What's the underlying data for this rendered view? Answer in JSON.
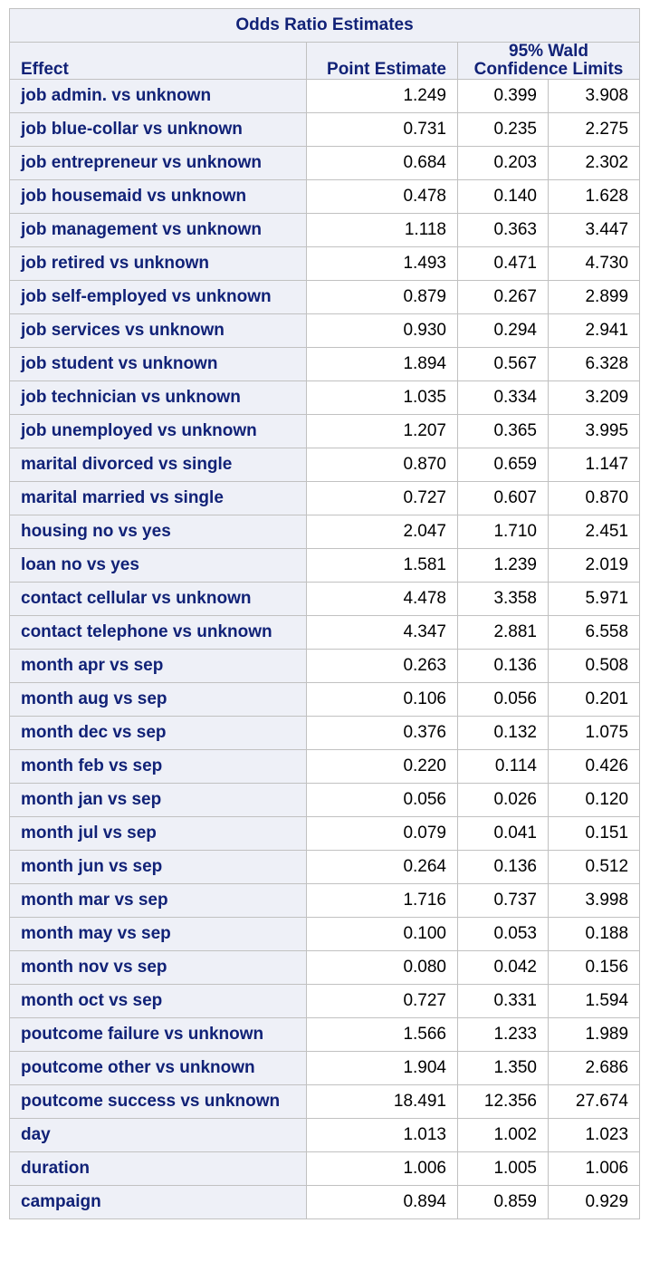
{
  "title": "Odds Ratio Estimates",
  "headers": {
    "effect": "Effect",
    "point": "Point Estimate",
    "ci_line1": "95% Wald",
    "ci_line2": "Confidence Limits"
  },
  "rows": [
    {
      "effect": "job admin. vs unknown",
      "point": "1.249",
      "lower": "0.399",
      "upper": "3.908"
    },
    {
      "effect": "job blue-collar vs unknown",
      "point": "0.731",
      "lower": "0.235",
      "upper": "2.275"
    },
    {
      "effect": "job entrepreneur vs unknown",
      "point": "0.684",
      "lower": "0.203",
      "upper": "2.302"
    },
    {
      "effect": "job housemaid vs unknown",
      "point": "0.478",
      "lower": "0.140",
      "upper": "1.628"
    },
    {
      "effect": "job management vs unknown",
      "point": "1.118",
      "lower": "0.363",
      "upper": "3.447"
    },
    {
      "effect": "job retired vs unknown",
      "point": "1.493",
      "lower": "0.471",
      "upper": "4.730"
    },
    {
      "effect": "job self-employed vs unknown",
      "point": "0.879",
      "lower": "0.267",
      "upper": "2.899"
    },
    {
      "effect": "job services vs unknown",
      "point": "0.930",
      "lower": "0.294",
      "upper": "2.941"
    },
    {
      "effect": "job student vs unknown",
      "point": "1.894",
      "lower": "0.567",
      "upper": "6.328"
    },
    {
      "effect": "job technician vs unknown",
      "point": "1.035",
      "lower": "0.334",
      "upper": "3.209"
    },
    {
      "effect": "job unemployed vs unknown",
      "point": "1.207",
      "lower": "0.365",
      "upper": "3.995"
    },
    {
      "effect": "marital divorced vs single",
      "point": "0.870",
      "lower": "0.659",
      "upper": "1.147"
    },
    {
      "effect": "marital married vs single",
      "point": "0.727",
      "lower": "0.607",
      "upper": "0.870"
    },
    {
      "effect": "housing no vs yes",
      "point": "2.047",
      "lower": "1.710",
      "upper": "2.451"
    },
    {
      "effect": "loan no vs yes",
      "point": "1.581",
      "lower": "1.239",
      "upper": "2.019"
    },
    {
      "effect": "contact cellular vs unknown",
      "point": "4.478",
      "lower": "3.358",
      "upper": "5.971"
    },
    {
      "effect": "contact telephone vs unknown",
      "point": "4.347",
      "lower": "2.881",
      "upper": "6.558"
    },
    {
      "effect": "month apr vs sep",
      "point": "0.263",
      "lower": "0.136",
      "upper": "0.508"
    },
    {
      "effect": "month aug vs sep",
      "point": "0.106",
      "lower": "0.056",
      "upper": "0.201"
    },
    {
      "effect": "month dec vs sep",
      "point": "0.376",
      "lower": "0.132",
      "upper": "1.075"
    },
    {
      "effect": "month feb vs sep",
      "point": "0.220",
      "lower": "0.114",
      "upper": "0.426"
    },
    {
      "effect": "month jan vs sep",
      "point": "0.056",
      "lower": "0.026",
      "upper": "0.120"
    },
    {
      "effect": "month jul vs sep",
      "point": "0.079",
      "lower": "0.041",
      "upper": "0.151"
    },
    {
      "effect": "month jun vs sep",
      "point": "0.264",
      "lower": "0.136",
      "upper": "0.512"
    },
    {
      "effect": "month mar vs sep",
      "point": "1.716",
      "lower": "0.737",
      "upper": "3.998"
    },
    {
      "effect": "month may vs sep",
      "point": "0.100",
      "lower": "0.053",
      "upper": "0.188"
    },
    {
      "effect": "month nov vs sep",
      "point": "0.080",
      "lower": "0.042",
      "upper": "0.156"
    },
    {
      "effect": "month oct vs sep",
      "point": "0.727",
      "lower": "0.331",
      "upper": "1.594"
    },
    {
      "effect": "poutcome failure vs unknown",
      "point": "1.566",
      "lower": "1.233",
      "upper": "1.989"
    },
    {
      "effect": "poutcome other vs unknown",
      "point": "1.904",
      "lower": "1.350",
      "upper": "2.686"
    },
    {
      "effect": "poutcome success vs unknown",
      "point": "18.491",
      "lower": "12.356",
      "upper": "27.674"
    },
    {
      "effect": "day",
      "point": "1.013",
      "lower": "1.002",
      "upper": "1.023"
    },
    {
      "effect": "duration",
      "point": "1.006",
      "lower": "1.005",
      "upper": "1.006"
    },
    {
      "effect": "campaign",
      "point": "0.894",
      "lower": "0.859",
      "upper": "0.929"
    }
  ]
}
